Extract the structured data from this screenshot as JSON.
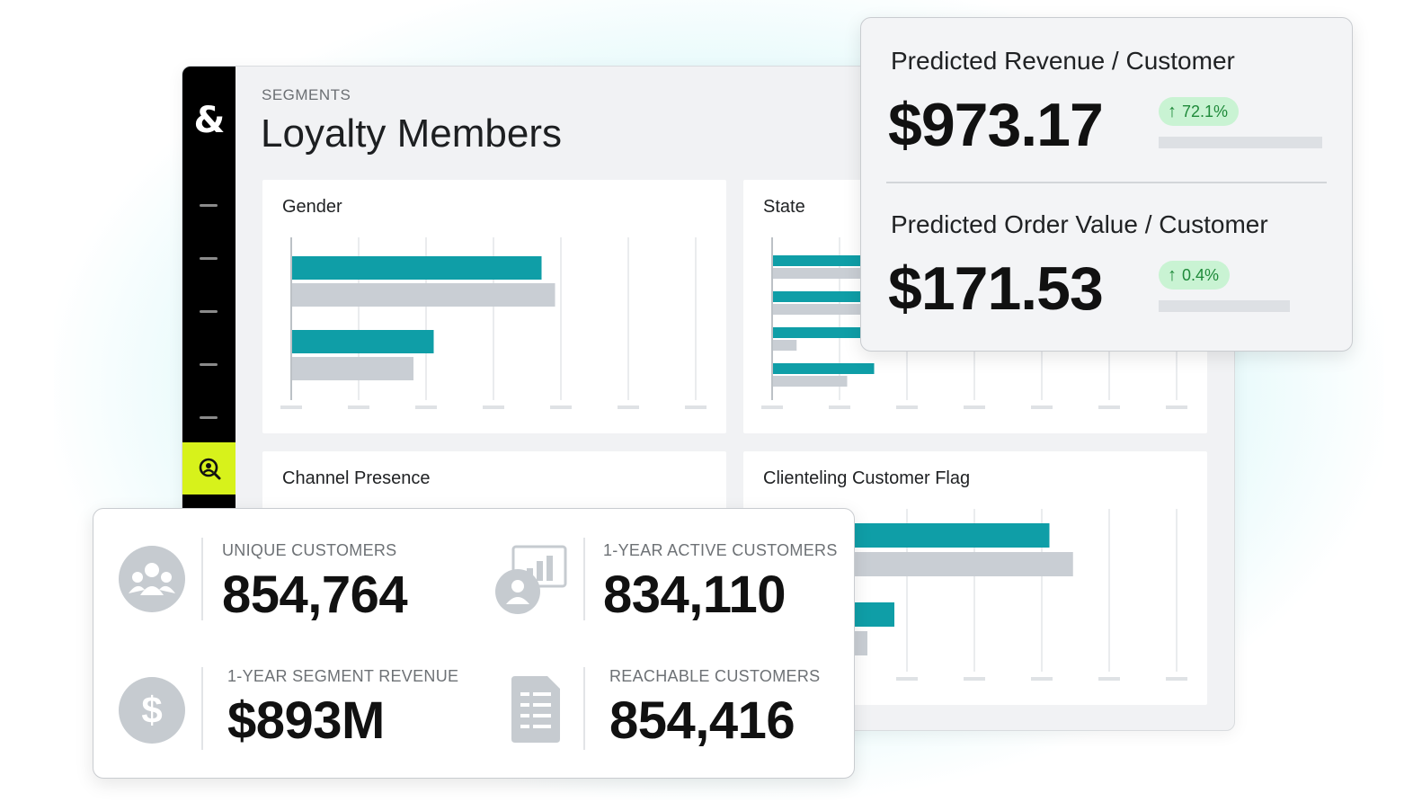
{
  "segment": {
    "eyebrow": "SEGMENTS",
    "title": "Loyalty Members"
  },
  "sidebar": {
    "logo": "&",
    "active_icon": "audience-search-icon"
  },
  "cards": {
    "gender": {
      "title": "Gender"
    },
    "state": {
      "title": "State"
    },
    "channel": {
      "title": "Channel Presence"
    },
    "clienteling": {
      "title": "Clienteling Customer Flag"
    }
  },
  "predicted": {
    "revenue": {
      "label": "Predicted Revenue / Customer",
      "value": "$973.17",
      "change": "72.1%"
    },
    "order_value": {
      "label": "Predicted Order Value / Customer",
      "value": "$171.53",
      "change": "0.4%"
    }
  },
  "stats": {
    "unique_customers": {
      "label": "UNIQUE CUSTOMERS",
      "value": "854,764"
    },
    "active_customers": {
      "label": "1-YEAR ACTIVE CUSTOMERS",
      "value": "834,110"
    },
    "segment_revenue": {
      "label": "1-YEAR SEGMENT REVENUE",
      "value": "$893M"
    },
    "reachable_customers": {
      "label": "REACHABLE CUSTOMERS",
      "value": "854,416"
    }
  },
  "colors": {
    "teal": "#0f9ea7",
    "gray_bar": "#c9ced4",
    "accent": "#d7f21b",
    "positive_bg": "#c9f3d3",
    "positive_text": "#1f8a3a"
  },
  "chart_data": [
    {
      "type": "bar",
      "orientation": "horizontal",
      "title": "Gender",
      "categories": [
        "",
        ""
      ],
      "series": [
        {
          "values": [
            3.7,
            2.1
          ]
        },
        {
          "values": [
            3.9,
            1.8
          ]
        }
      ],
      "xlim": [
        0,
        6
      ]
    },
    {
      "type": "bar",
      "orientation": "horizontal",
      "title": "State",
      "categories": [
        "",
        "",
        "",
        ""
      ],
      "series": [
        {
          "values": [
            1.8,
            1.6,
            1.4,
            1.5
          ]
        },
        {
          "values": [
            1.4,
            1.6,
            0.35,
            1.1
          ]
        }
      ],
      "xlim": [
        0,
        6
      ]
    },
    {
      "type": "bar",
      "orientation": "horizontal",
      "title": "Clienteling Customer Flag",
      "categories": [
        "",
        ""
      ],
      "series": [
        {
          "values": [
            4.1,
            1.8
          ]
        },
        {
          "values": [
            4.45,
            1.4
          ]
        }
      ],
      "xlim": [
        0,
        6
      ]
    }
  ]
}
